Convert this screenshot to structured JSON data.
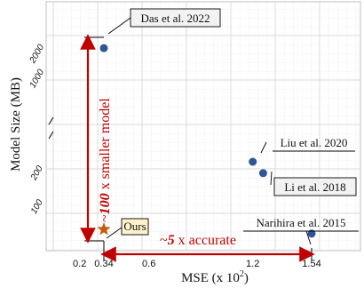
{
  "chart_data": {
    "type": "scatter",
    "xlabel": "MSE (x 10",
    "xlabel_sup": "2",
    "xlabel_close": ")",
    "ylabel": "Model Size (MB)",
    "x_ticks": [
      "0.2",
      "0.34",
      "0.6",
      "1.2",
      "1.54"
    ],
    "y_ticks": [
      "100",
      "200",
      "1000",
      "2000"
    ],
    "y_scale": "broken axis between 200 and 1000",
    "grid": true,
    "points": [
      {
        "label": "Das et al. 2022",
        "x": 0.34,
        "y": 2200,
        "marker": "circle",
        "color": "#2f5597"
      },
      {
        "label": "Liu et al. 2020",
        "x": 1.2,
        "y": 240,
        "marker": "circle",
        "color": "#2f5597"
      },
      {
        "label": "Li et al. 2018",
        "x": 1.26,
        "y": 190,
        "marker": "circle",
        "color": "#2f5597"
      },
      {
        "label": "Narihira et al. 2015",
        "x": 1.54,
        "y": 55,
        "marker": "circle",
        "color": "#2f5597"
      },
      {
        "label": "Ours",
        "x": 0.34,
        "y": 60,
        "marker": "star",
        "color": "#c55a11"
      }
    ],
    "annotations": {
      "vertical": {
        "prefix": "~",
        "factor": "100",
        "suffix": " x smaller model",
        "color": "#c00000"
      },
      "horizontal": {
        "prefix": "~",
        "factor": "5",
        "suffix": " x accurate",
        "color": "#c00000"
      }
    }
  }
}
